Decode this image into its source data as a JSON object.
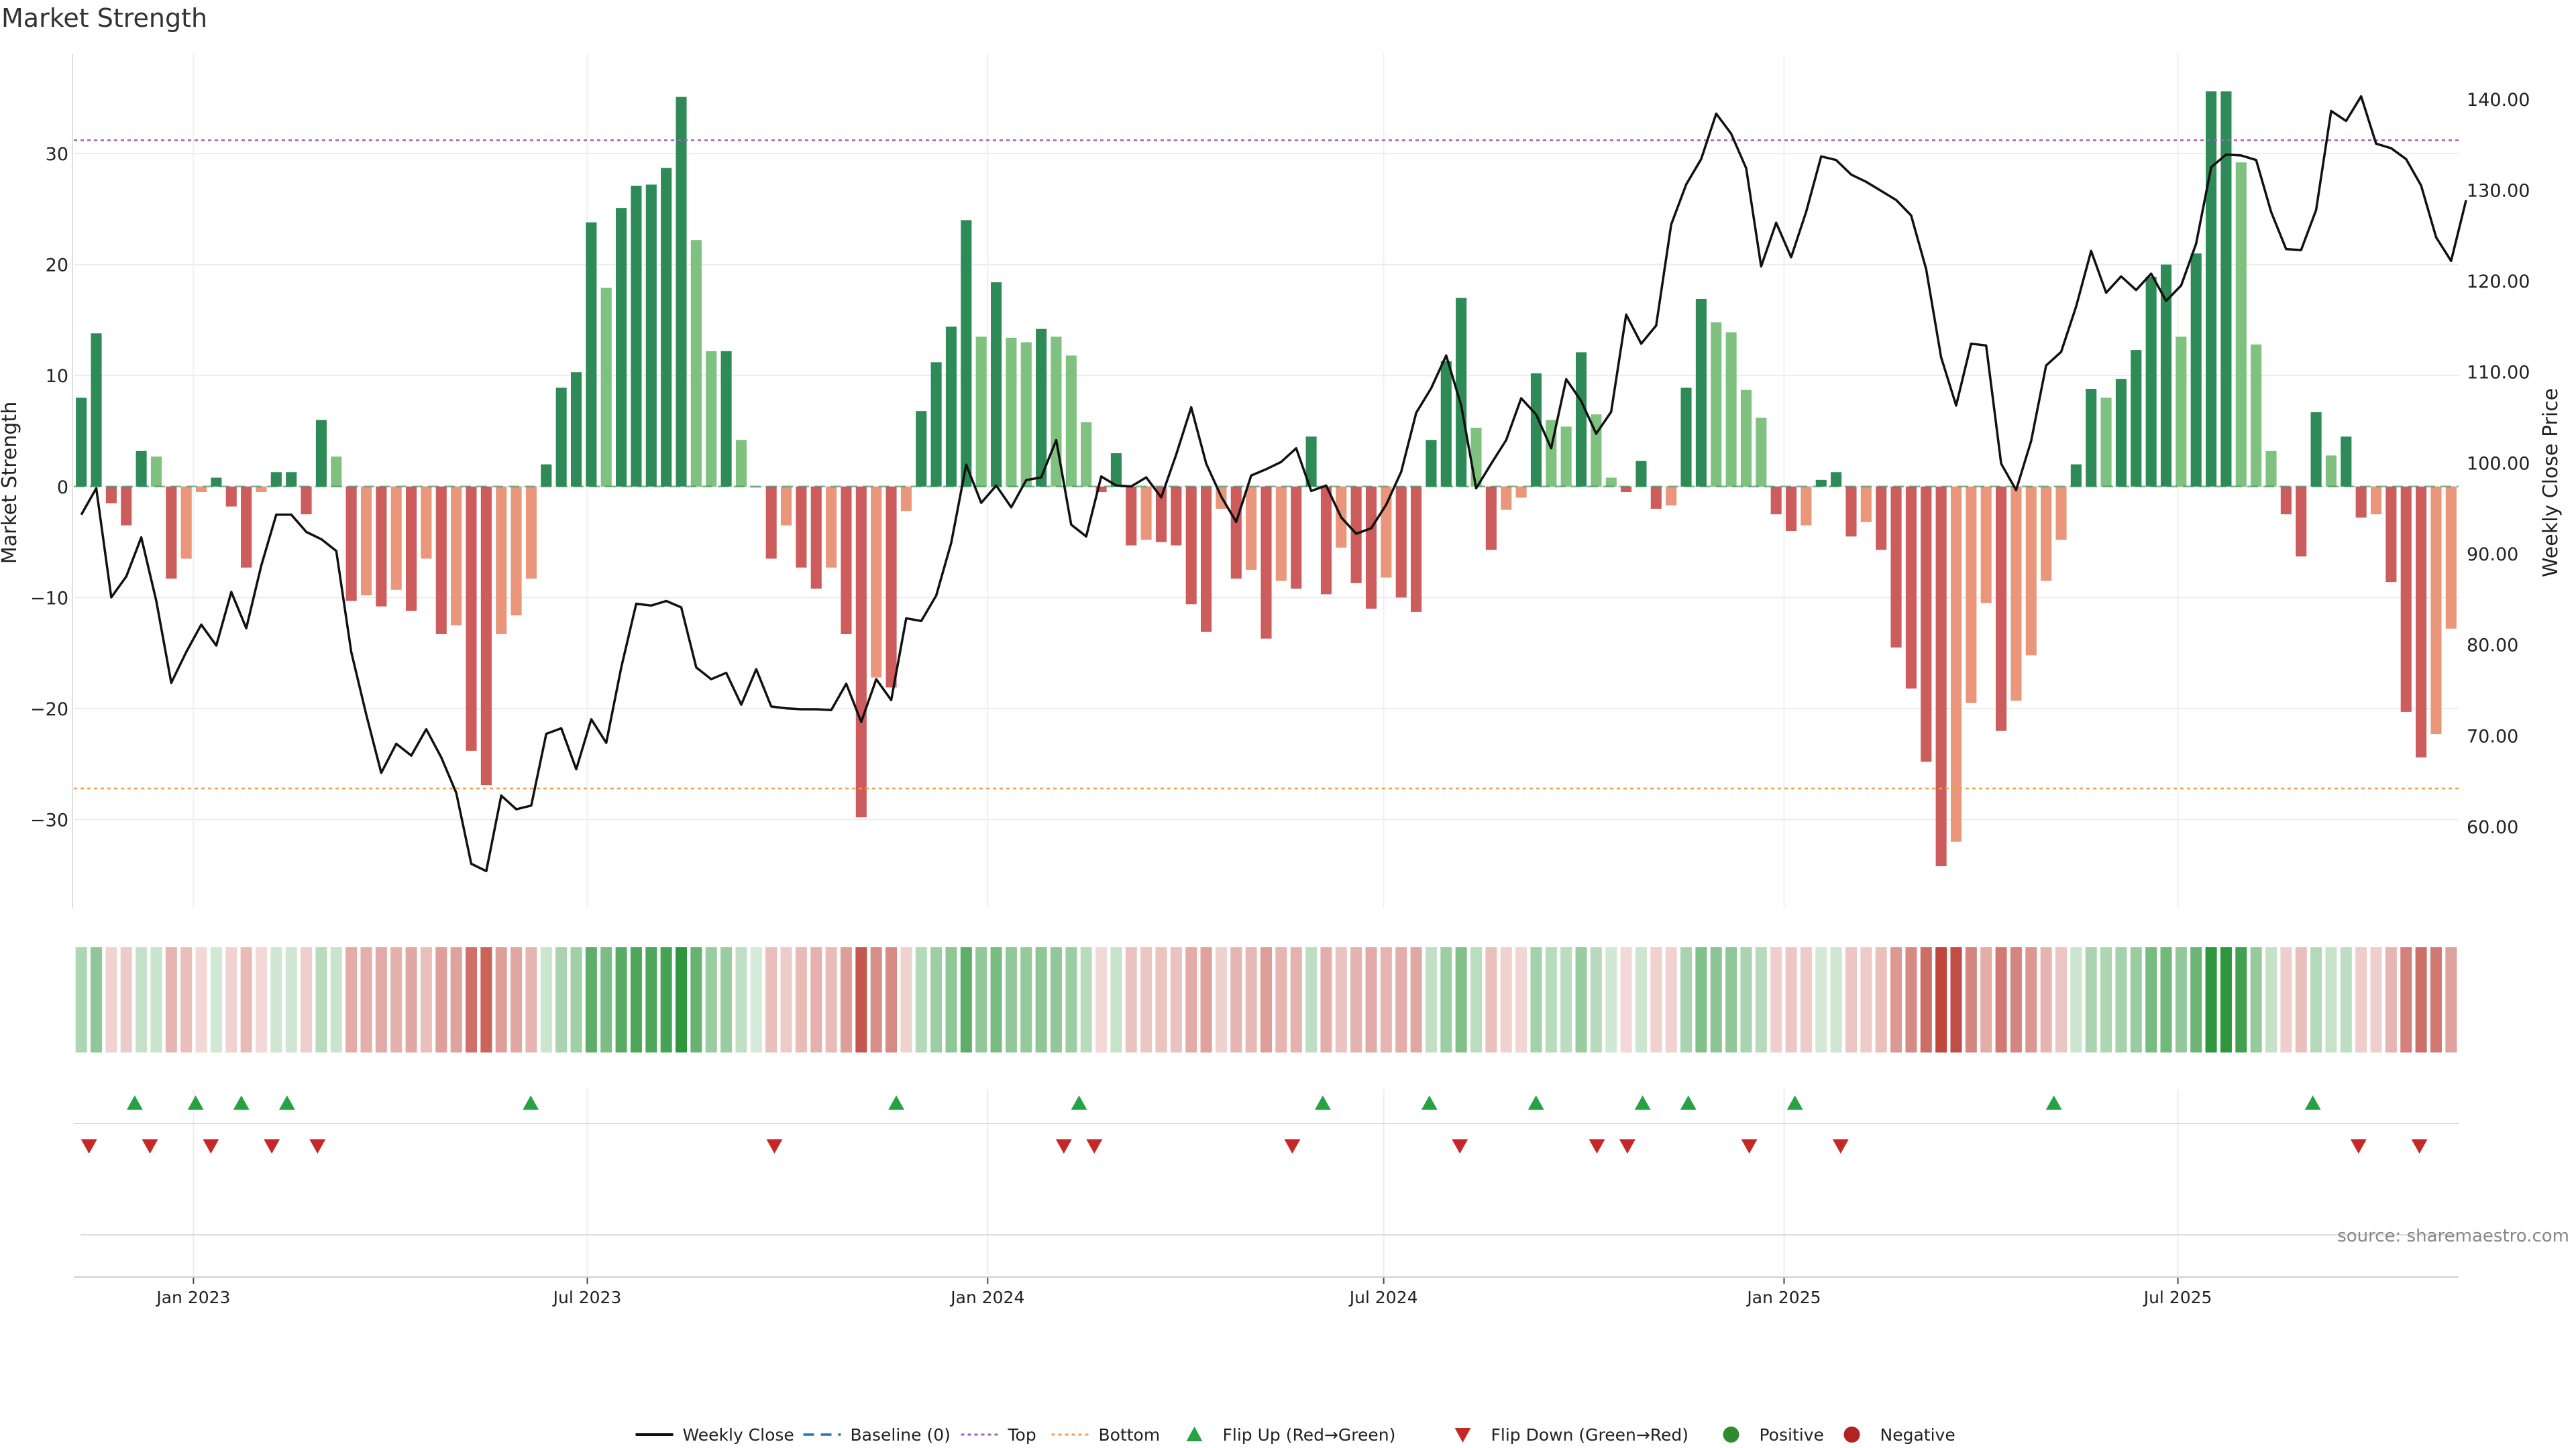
{
  "chart_data": {
    "type": "bar",
    "title": "Market Strength",
    "ylabel": "Market Strength",
    "y2label": "Weekly Close Price",
    "ylim": [
      -38,
      39
    ],
    "y2lim": [
      51,
      145
    ],
    "yticks": [
      -30,
      -20,
      -10,
      0,
      10,
      20,
      30
    ],
    "y2ticks": [
      "60.00",
      "70.00",
      "80.00",
      "90.00",
      "100.00",
      "110.00",
      "120.00",
      "130.00",
      "140.00"
    ],
    "top_line": 31.2,
    "bottom_line": -27.2,
    "start_date": "2022-11-07",
    "end_date": "2025-11-07",
    "x_tick_labels": [
      {
        "label": "Jan 2023",
        "date": "2023-01-01"
      },
      {
        "label": "Jul 2023",
        "date": "2023-07-01"
      },
      {
        "label": "Jan 2024",
        "date": "2024-01-01"
      },
      {
        "label": "Jul 2024",
        "date": "2024-07-01"
      },
      {
        "label": "Jan 2025",
        "date": "2025-01-01"
      },
      {
        "label": "Jul 2025",
        "date": "2025-07-01"
      }
    ],
    "strength": [
      8,
      13.8,
      -1.5,
      -3.5,
      3.2,
      2.7,
      -8.3,
      -6.5,
      -0.5,
      0.8,
      -1.8,
      -7.3,
      -0.5,
      1.3,
      1.3,
      -2.5,
      6,
      2.7,
      -10.3,
      -9.8,
      -10.8,
      -9.3,
      -11.2,
      -6.5,
      -13.3,
      -12.5,
      -23.8,
      -26.9,
      -13.3,
      -11.6,
      -8.3,
      2,
      8.9,
      10.3,
      23.8,
      17.9,
      25.1,
      27.1,
      27.2,
      28.7,
      35.1,
      22.2,
      12.2,
      12.2,
      4.2,
      0,
      -6.5,
      -3.5,
      -7.3,
      -9.2,
      -7.3,
      -13.3,
      -29.8,
      -17.2,
      -18.1,
      -2.2,
      6.8,
      11.2,
      14.4,
      24,
      13.5,
      18.4,
      13.4,
      13,
      14.2,
      13.5,
      11.8,
      5.8,
      -0.5,
      3,
      -5.3,
      -4.8,
      -5,
      -5.3,
      -10.6,
      -13.1,
      -2,
      -8.3,
      -7.5,
      -13.7,
      -8.5,
      -9.2,
      4.5,
      -9.7,
      -5.5,
      -8.7,
      -11,
      -8.2,
      -10,
      -11.3,
      4.2,
      11.3,
      17,
      5.3,
      -5.7,
      -2.1,
      -1,
      10.2,
      6,
      5.4,
      12.1,
      6.5,
      0.8,
      -0.5,
      2.3,
      -2,
      -1.7,
      8.9,
      16.9,
      14.8,
      13.9,
      8.7,
      6.2,
      -2.5,
      -4,
      -3.5,
      0.6,
      1.3,
      -4.5,
      -3.2,
      -5.7,
      -14.5,
      -18.2,
      -24.8,
      -34.2,
      -32,
      -19.5,
      -10.5,
      -22,
      -19.3,
      -15.2,
      -8.5,
      -4.8,
      2,
      8.8,
      8,
      9.7,
      12.3,
      18.9,
      20,
      13.5,
      21,
      35.6,
      35.6,
      29.2,
      12.8,
      3.2,
      -2.5,
      -6.3,
      6.7,
      2.8,
      4.5,
      -2.8,
      -2.5,
      -8.6,
      -20.3,
      -24.4,
      -22.3,
      -12.8
    ],
    "close": [
      94.3,
      97.2,
      85.2,
      87.5,
      91.8,
      84.8,
      75.8,
      79.2,
      82.2,
      79.9,
      85.8,
      81.8,
      88.7,
      94.3,
      94.3,
      92.4,
      91.6,
      90.3,
      79.2,
      72.3,
      65.9,
      69.1,
      67.8,
      70.7,
      67.6,
      63.7,
      55.9,
      55.1,
      63.4,
      61.9,
      62.3,
      70.2,
      70.8,
      66.3,
      71.8,
      69.2,
      77.5,
      84.5,
      84.3,
      84.8,
      84.1,
      77.5,
      76.2,
      76.9,
      73.4,
      77.3,
      73.2,
      73,
      72.9,
      72.9,
      72.8,
      75.7,
      71.5,
      76.2,
      73.9,
      82.9,
      82.6,
      85.4,
      91.2,
      99.8,
      95.6,
      97.5,
      95.1,
      98.1,
      98.4,
      102.5,
      93.2,
      91.9,
      98.5,
      97.5,
      97.4,
      98.4,
      96.2,
      100.9,
      106.1,
      99.9,
      96.3,
      93.5,
      98.6,
      99.3,
      100.1,
      101.6,
      96.9,
      97.5,
      94,
      92.2,
      92.8,
      95.4,
      99,
      105.5,
      108.2,
      111.8,
      106.3,
      97.2,
      99.9,
      102.5,
      107.1,
      105.3,
      101.6,
      109.2,
      106.8,
      103.2,
      105.6,
      116.3,
      113.1,
      115.1,
      126.2,
      130.6,
      133.4,
      138.4,
      136.2,
      132.4,
      121.6,
      126.4,
      122.6,
      127.6,
      133.7,
      133.3,
      131.7,
      130.9,
      129.9,
      128.9,
      127.2,
      121.3,
      111.6,
      106.3,
      113.1,
      112.9,
      99.9,
      97,
      102.4,
      110.7,
      112.2,
      117.2,
      123.3,
      118.7,
      120.5,
      119,
      120.8,
      117.8,
      119.5,
      124.1,
      132.5,
      133.9,
      133.8,
      133.3,
      127.6,
      123.5,
      123.4,
      127.8,
      138.7,
      137.6,
      140.3,
      135.1,
      134.6,
      133.4,
      130.5,
      124.8,
      122.2,
      128.9
    ],
    "flip_up": [
      "2022-12-05",
      "2023-01-02",
      "2023-01-23",
      "2023-02-13",
      "2023-06-05",
      "2023-11-20",
      "2024-02-12",
      "2024-06-03",
      "2024-07-22",
      "2024-09-09",
      "2024-10-28",
      "2024-11-18",
      "2025-01-06",
      "2025-05-05",
      "2025-09-01"
    ],
    "flip_down": [
      "2022-11-14",
      "2022-12-12",
      "2023-01-09",
      "2023-02-06",
      "2023-02-27",
      "2023-09-25",
      "2024-02-05",
      "2024-02-19",
      "2024-05-20",
      "2024-08-05",
      "2024-10-07",
      "2024-10-21",
      "2024-12-16",
      "2025-01-27",
      "2025-09-22",
      "2025-10-20"
    ],
    "legend": [
      {
        "label": "Weekly Close",
        "kind": "line",
        "color": "#111111"
      },
      {
        "label": "Baseline (0)",
        "kind": "dash",
        "color": "#1f77b4"
      },
      {
        "label": "Top",
        "kind": "dot",
        "color": "#a060c0"
      },
      {
        "label": "Bottom",
        "kind": "dot",
        "color": "#f0a050"
      },
      {
        "label": "Flip Up (Red→Green)",
        "kind": "up",
        "color": "#27a243"
      },
      {
        "label": "Flip Down (Green→Red)",
        "kind": "down",
        "color": "#c62828"
      },
      {
        "label": "Positive",
        "kind": "circle",
        "color": "#2e8b30"
      },
      {
        "label": "Negative",
        "kind": "circle",
        "color": "#b22222"
      }
    ],
    "source": "source: sharemaestro.com",
    "colors": {
      "pos_strong": "#2e8b57",
      "pos_weak": "#7fc17f",
      "neg_strong": "#cd5c5c",
      "neg_weak": "#e9967a",
      "line": "#111111",
      "flip_up": "#27a243",
      "flip_down": "#c62828"
    }
  }
}
